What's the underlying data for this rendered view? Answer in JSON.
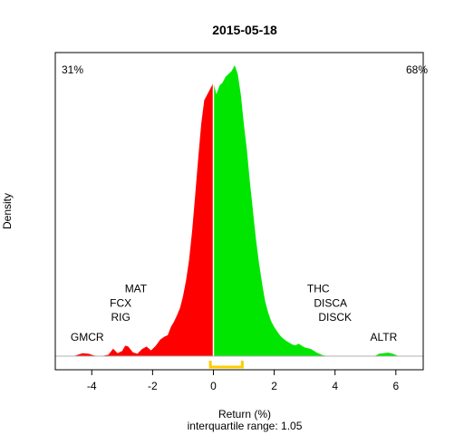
{
  "chart_data": {
    "type": "area",
    "title": "2015-05-18",
    "xlabel": "Return (%)",
    "ylabel": "Density",
    "subtitle": "interquartile range: 1.05",
    "xlim": [
      -5.2,
      6.9
    ],
    "ylim": [
      0,
      1
    ],
    "x_ticks": [
      -4,
      -2,
      0,
      2,
      4,
      6
    ],
    "split_at": 0,
    "negative_share_label": "31%",
    "positive_share_label": "68%",
    "colors": {
      "negative": "#ff0000",
      "positive": "#00e600",
      "iqr": "#ffcc00",
      "negative_text": "#ff0000",
      "positive_text": "#00aa00"
    },
    "interquartile": {
      "low": -0.1,
      "high": 0.95
    },
    "density": {
      "x": [
        -5.1,
        -4.6,
        -4.3,
        -4.1,
        -3.95,
        -3.8,
        -3.6,
        -3.45,
        -3.3,
        -3.15,
        -3.0,
        -2.9,
        -2.8,
        -2.65,
        -2.5,
        -2.35,
        -2.2,
        -2.05,
        -1.9,
        -1.75,
        -1.6,
        -1.5,
        -1.4,
        -1.3,
        -1.2,
        -1.1,
        -1.0,
        -0.9,
        -0.8,
        -0.7,
        -0.6,
        -0.5,
        -0.4,
        -0.3,
        -0.2,
        -0.1,
        0.0,
        0.1,
        0.2,
        0.3,
        0.4,
        0.5,
        0.6,
        0.7,
        0.8,
        0.9,
        1.0,
        1.1,
        1.2,
        1.3,
        1.4,
        1.5,
        1.6,
        1.7,
        1.8,
        1.9,
        2.0,
        2.1,
        2.2,
        2.3,
        2.4,
        2.5,
        2.6,
        2.7,
        2.8,
        2.9,
        3.0,
        3.2,
        3.4,
        3.6,
        3.8,
        4.0,
        4.2,
        4.5,
        4.8,
        5.1,
        5.3,
        5.45,
        5.6,
        5.75,
        5.9,
        6.1,
        6.6
      ],
      "y": [
        0.0,
        0.0,
        0.01,
        0.008,
        0.003,
        0.0,
        0.002,
        0.005,
        0.026,
        0.01,
        0.018,
        0.036,
        0.033,
        0.013,
        0.008,
        0.024,
        0.033,
        0.02,
        0.035,
        0.057,
        0.068,
        0.072,
        0.1,
        0.118,
        0.14,
        0.165,
        0.205,
        0.26,
        0.33,
        0.43,
        0.55,
        0.68,
        0.8,
        0.88,
        0.9,
        0.92,
        0.94,
        0.9,
        0.93,
        0.94,
        0.96,
        0.97,
        0.98,
        1.0,
        0.97,
        0.9,
        0.8,
        0.71,
        0.6,
        0.5,
        0.4,
        0.32,
        0.25,
        0.19,
        0.15,
        0.12,
        0.1,
        0.085,
        0.07,
        0.06,
        0.052,
        0.046,
        0.04,
        0.037,
        0.043,
        0.036,
        0.03,
        0.025,
        0.012,
        0.003,
        0.0,
        0.0,
        0.0,
        0.0,
        0.0,
        0.0,
        0.0,
        0.008,
        0.01,
        0.012,
        0.008,
        0.0,
        0.0
      ]
    },
    "annotations": [
      {
        "label": "GMCR",
        "x": -4.15,
        "y": 0.053
      },
      {
        "label": "RIG",
        "x": -3.05,
        "y": 0.121
      },
      {
        "label": "FCX",
        "x": -3.05,
        "y": 0.17
      },
      {
        "label": "MAT",
        "x": -2.55,
        "y": 0.22
      },
      {
        "label": "THC",
        "x": 3.45,
        "y": 0.22
      },
      {
        "label": "DISCA",
        "x": 3.85,
        "y": 0.17
      },
      {
        "label": "DISCK",
        "x": 4.0,
        "y": 0.121
      },
      {
        "label": "ALTR",
        "x": 5.6,
        "y": 0.053
      }
    ]
  }
}
